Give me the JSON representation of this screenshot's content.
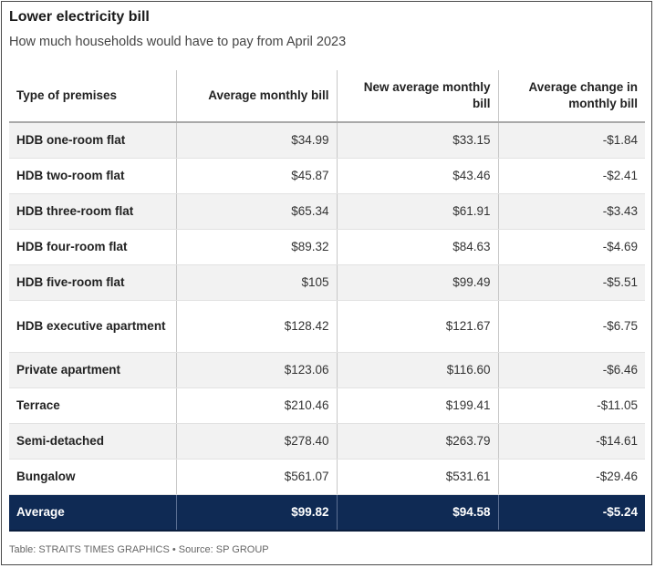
{
  "header": {
    "title": "Lower electricity bill",
    "subtitle": "How much households would have to pay from April 2023"
  },
  "table": {
    "columns": [
      "Type of premises",
      "Average monthly bill",
      "New average monthly bill",
      "Average change in monthly bill"
    ],
    "rows": [
      {
        "premises": "HDB one-room flat",
        "avg": "$34.99",
        "new": "$33.15",
        "change": "-$1.84"
      },
      {
        "premises": "HDB two-room flat",
        "avg": "$45.87",
        "new": "$43.46",
        "change": "-$2.41"
      },
      {
        "premises": "HDB three-room flat",
        "avg": "$65.34",
        "new": "$61.91",
        "change": "-$3.43"
      },
      {
        "premises": "HDB four-room flat",
        "avg": "$89.32",
        "new": "$84.63",
        "change": "-$4.69"
      },
      {
        "premises": "HDB five-room flat",
        "avg": "$105",
        "new": "$99.49",
        "change": "-$5.51"
      },
      {
        "premises": "HDB executive apartment",
        "avg": "$128.42",
        "new": "$121.67",
        "change": "-$6.75"
      },
      {
        "premises": "Private apartment",
        "avg": "$123.06",
        "new": "$116.60",
        "change": "-$6.46"
      },
      {
        "premises": "Terrace",
        "avg": "$210.46",
        "new": "$199.41",
        "change": "-$11.05"
      },
      {
        "premises": "Semi-detached",
        "avg": "$278.40",
        "new": "$263.79",
        "change": "-$14.61"
      },
      {
        "premises": "Bungalow",
        "avg": "$561.07",
        "new": "$531.61",
        "change": "-$29.46"
      }
    ],
    "average": {
      "premises": "Average",
      "avg": "$99.82",
      "new": "$94.58",
      "change": "-$5.24"
    }
  },
  "footer": {
    "source": "Table: STRAITS TIMES GRAPHICS • Source: SP GROUP"
  },
  "colors": {
    "average_row_bg": "#0f2a54",
    "stripe_bg": "#f2f2f2"
  }
}
